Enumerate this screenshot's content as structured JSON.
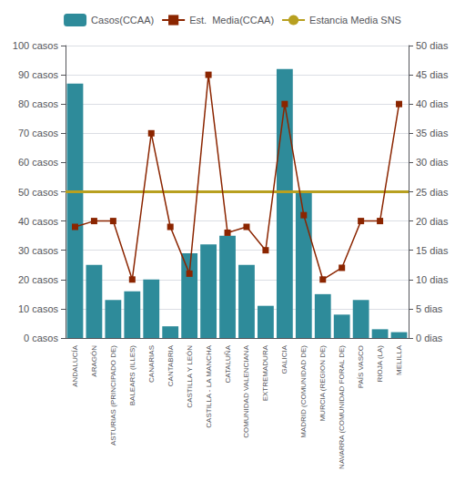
{
  "chart_data": {
    "type": "bar",
    "categories": [
      "ANDALUCÍA",
      "ARAGÓN",
      "ASTURIAS (PRINCIPADO DE)",
      "BALEARS (ILLES)",
      "CANARIAS",
      "CANTABRIA",
      "CASTILLA Y LEÓN",
      "CASTILLA - LA MANCHA",
      "CATALUÑA",
      "COMUNIDAD VALENCIANA",
      "EXTREMADURA",
      "GALICIA",
      "MADRID (COMUNIDAD DE)",
      "MURCIA (REGION DE)",
      "NAVARRA (COMUNIDAD FORAL DE)",
      "PAÍS VASCO",
      "RIOJA (LA)",
      "MELILLA"
    ],
    "series": [
      {
        "name": "Casos(CCAA)",
        "type": "bar",
        "color": "#2e8b9a",
        "values": [
          87,
          25,
          13,
          16,
          20,
          4,
          29,
          32,
          35,
          25,
          11,
          92,
          50,
          15,
          8,
          13,
          3,
          2
        ]
      },
      {
        "name": "Est.  Media(CCAA)",
        "type": "line",
        "axis": "y2",
        "color": "#8b2500",
        "marker": "square",
        "values": [
          19,
          20,
          20,
          10,
          35,
          19,
          11,
          45,
          18,
          19,
          15,
          40,
          21,
          10,
          12,
          20,
          20,
          40
        ]
      },
      {
        "name": "Estancia Media SNS",
        "type": "hline",
        "axis": "y2",
        "color": "#b8a020",
        "value": 25
      }
    ],
    "ylim": [
      0,
      100
    ],
    "yticks": [
      {
        "value": 0,
        "label": "0 casos"
      },
      {
        "value": 10,
        "label": "10 casos"
      },
      {
        "value": 20,
        "label": "20 casos"
      },
      {
        "value": 30,
        "label": "30 casos"
      },
      {
        "value": 40,
        "label": "40 casos"
      },
      {
        "value": 50,
        "label": "50 casos"
      },
      {
        "value": 60,
        "label": "60 casos"
      },
      {
        "value": 70,
        "label": "70 casos"
      },
      {
        "value": 80,
        "label": "80 casos"
      },
      {
        "value": 90,
        "label": "90 casos"
      },
      {
        "value": 100,
        "label": "100 casos"
      }
    ],
    "y2lim": [
      0,
      50
    ],
    "y2ticks": [
      {
        "value": 0,
        "label": "0 dias"
      },
      {
        "value": 5,
        "label": "5 dias"
      },
      {
        "value": 10,
        "label": "10 dias"
      },
      {
        "value": 15,
        "label": "15 dias"
      },
      {
        "value": 20,
        "label": "20 dias"
      },
      {
        "value": 25,
        "label": "25 dias"
      },
      {
        "value": 30,
        "label": "30 dias"
      },
      {
        "value": 35,
        "label": "35 dias"
      },
      {
        "value": 40,
        "label": "40 dias"
      },
      {
        "value": 45,
        "label": "45 dias"
      },
      {
        "value": 50,
        "label": "50 dias"
      }
    ],
    "grid": true,
    "legend": "top"
  }
}
